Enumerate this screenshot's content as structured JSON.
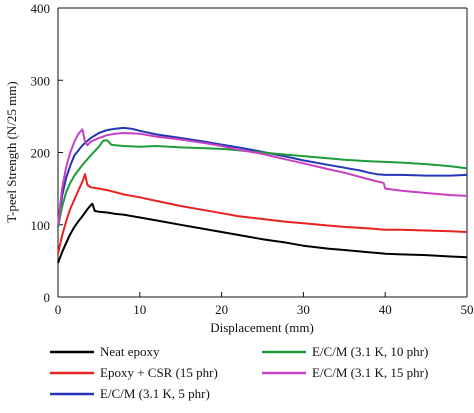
{
  "chart_data": {
    "type": "line",
    "title": "",
    "xlabel": "Displacement (mm)",
    "ylabel": "T-peel Strength (N/25 mm)",
    "xlim": [
      0,
      50
    ],
    "ylim": [
      0,
      400
    ],
    "x_ticks": [
      "0",
      "10",
      "20",
      "30",
      "40",
      "50"
    ],
    "y_ticks": [
      "0",
      "100",
      "200",
      "300",
      "400"
    ],
    "grid": false,
    "legend_position": "bottom",
    "series": [
      {
        "name": "Neat epoxy",
        "color": "#000000",
        "points": [
          [
            0,
            47
          ],
          [
            0.5,
            62
          ],
          [
            1,
            75
          ],
          [
            1.5,
            87
          ],
          [
            2,
            97
          ],
          [
            2.5,
            105
          ],
          [
            3,
            112
          ],
          [
            3.5,
            120
          ],
          [
            4,
            127
          ],
          [
            4.2,
            129
          ],
          [
            4.5,
            119
          ],
          [
            5,
            118
          ],
          [
            6,
            117
          ],
          [
            7,
            115
          ],
          [
            8,
            114
          ],
          [
            10,
            110
          ],
          [
            12,
            106
          ],
          [
            15,
            100
          ],
          [
            18,
            94
          ],
          [
            20,
            90
          ],
          [
            22,
            86
          ],
          [
            25,
            80
          ],
          [
            28,
            75
          ],
          [
            30,
            71
          ],
          [
            33,
            67
          ],
          [
            35,
            65
          ],
          [
            38,
            62
          ],
          [
            40,
            60
          ],
          [
            42,
            59
          ],
          [
            45,
            58
          ],
          [
            48,
            56
          ],
          [
            50,
            55
          ]
        ]
      },
      {
        "name": "Epoxy + CSR (15 phr)",
        "color": "#e8221f",
        "points": [
          [
            0,
            60
          ],
          [
            0.5,
            85
          ],
          [
            1,
            105
          ],
          [
            1.5,
            122
          ],
          [
            2,
            135
          ],
          [
            2.5,
            148
          ],
          [
            3,
            160
          ],
          [
            3.3,
            170
          ],
          [
            3.6,
            155
          ],
          [
            4,
            152
          ],
          [
            5,
            150
          ],
          [
            6,
            148
          ],
          [
            7,
            145
          ],
          [
            8,
            142
          ],
          [
            10,
            138
          ],
          [
            12,
            133
          ],
          [
            15,
            126
          ],
          [
            18,
            120
          ],
          [
            20,
            116
          ],
          [
            22,
            112
          ],
          [
            25,
            108
          ],
          [
            28,
            104
          ],
          [
            30,
            102
          ],
          [
            33,
            99
          ],
          [
            35,
            97
          ],
          [
            38,
            95
          ],
          [
            40,
            93
          ],
          [
            42,
            93
          ],
          [
            45,
            92
          ],
          [
            48,
            91
          ],
          [
            50,
            90
          ]
        ]
      },
      {
        "name": "E/C/M (3.1 K, 5 phr)",
        "color": "#2436b7",
        "points": [
          [
            0,
            97
          ],
          [
            0.5,
            140
          ],
          [
            1,
            165
          ],
          [
            1.5,
            182
          ],
          [
            2,
            196
          ],
          [
            3,
            210
          ],
          [
            4,
            220
          ],
          [
            5,
            227
          ],
          [
            6,
            231
          ],
          [
            7,
            233
          ],
          [
            8,
            234
          ],
          [
            9,
            233
          ],
          [
            10,
            230
          ],
          [
            12,
            225
          ],
          [
            15,
            220
          ],
          [
            18,
            215
          ],
          [
            20,
            211
          ],
          [
            22,
            207
          ],
          [
            25,
            201
          ],
          [
            28,
            194
          ],
          [
            30,
            189
          ],
          [
            33,
            183
          ],
          [
            35,
            179
          ],
          [
            37,
            175
          ],
          [
            38,
            172
          ],
          [
            39,
            170
          ],
          [
            40,
            169
          ],
          [
            42,
            169
          ],
          [
            45,
            168
          ],
          [
            48,
            168
          ],
          [
            50,
            169
          ]
        ]
      },
      {
        "name": "E/C/M (3.1 K, 10 phr)",
        "color": "#1f9b3a",
        "points": [
          [
            0,
            96
          ],
          [
            0.5,
            125
          ],
          [
            1,
            145
          ],
          [
            1.5,
            158
          ],
          [
            2,
            168
          ],
          [
            3,
            183
          ],
          [
            4,
            196
          ],
          [
            5,
            208
          ],
          [
            5.5,
            216
          ],
          [
            6,
            217
          ],
          [
            6.5,
            211
          ],
          [
            7,
            210
          ],
          [
            8,
            209
          ],
          [
            10,
            208
          ],
          [
            12,
            209
          ],
          [
            15,
            207
          ],
          [
            18,
            206
          ],
          [
            20,
            205
          ],
          [
            22,
            203
          ],
          [
            25,
            200
          ],
          [
            28,
            197
          ],
          [
            30,
            195
          ],
          [
            33,
            192
          ],
          [
            35,
            190
          ],
          [
            38,
            188
          ],
          [
            40,
            187
          ],
          [
            42,
            186
          ],
          [
            45,
            184
          ],
          [
            48,
            181
          ],
          [
            50,
            178
          ]
        ]
      },
      {
        "name": "E/C/M (3.1 K, 15 phr)",
        "color": "#c640c2",
        "points": [
          [
            0,
            99
          ],
          [
            0.5,
            150
          ],
          [
            1,
            180
          ],
          [
            1.5,
            200
          ],
          [
            2,
            215
          ],
          [
            2.5,
            226
          ],
          [
            3,
            232
          ],
          [
            3.3,
            215
          ],
          [
            3.6,
            210
          ],
          [
            4,
            215
          ],
          [
            5,
            220
          ],
          [
            6,
            224
          ],
          [
            7,
            226
          ],
          [
            8,
            227
          ],
          [
            10,
            226
          ],
          [
            12,
            222
          ],
          [
            15,
            218
          ],
          [
            18,
            213
          ],
          [
            20,
            209
          ],
          [
            22,
            204
          ],
          [
            25,
            198
          ],
          [
            28,
            190
          ],
          [
            30,
            185
          ],
          [
            33,
            177
          ],
          [
            35,
            172
          ],
          [
            37,
            166
          ],
          [
            39,
            160
          ],
          [
            39.8,
            158
          ],
          [
            40,
            150
          ],
          [
            42,
            147
          ],
          [
            45,
            144
          ],
          [
            48,
            141
          ],
          [
            50,
            140
          ]
        ]
      }
    ]
  }
}
